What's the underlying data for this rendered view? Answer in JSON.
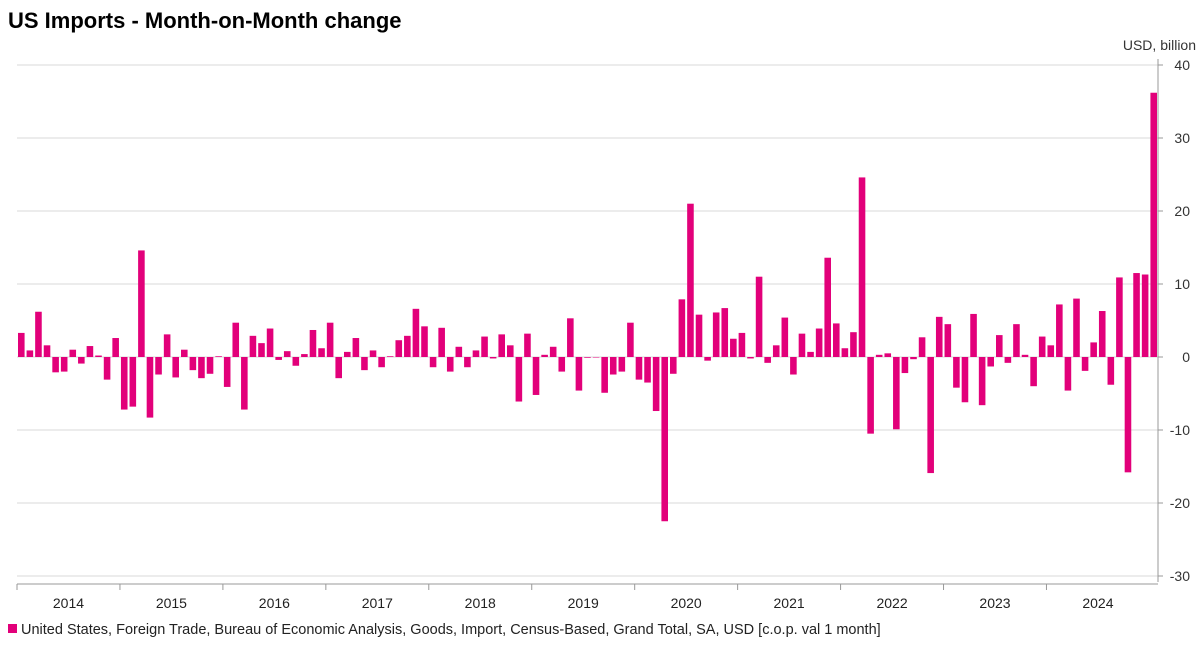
{
  "chart_data": {
    "type": "bar",
    "title": "US Imports - Month-on-Month change",
    "unit_label": "USD, billion",
    "ylim": [
      -30,
      40
    ],
    "yticks": [
      40,
      30,
      20,
      10,
      0,
      -10,
      -20,
      -30
    ],
    "grid": true,
    "legend_position": "bottom-left",
    "color": "#e2007a",
    "x_start": "2014-01",
    "year_labels": [
      "2014",
      "2015",
      "2016",
      "2017",
      "2018",
      "2019",
      "2020",
      "2021",
      "2022",
      "2023",
      "2024"
    ],
    "series": [
      {
        "name": "United States, Foreign Trade, Bureau of Economic Analysis, Goods, Import, Census-Based, Grand Total, SA, USD [c.o.p. val 1 month]",
        "values": [
          3.3,
          0.9,
          6.2,
          1.6,
          -2.1,
          -2.0,
          1.0,
          -0.9,
          1.5,
          0.2,
          -3.1,
          2.6,
          -7.2,
          -6.8,
          14.6,
          -8.3,
          -2.4,
          3.1,
          -2.8,
          1.0,
          -1.8,
          -2.9,
          -2.3,
          0.1,
          -4.1,
          4.7,
          -7.2,
          2.9,
          1.9,
          3.9,
          -0.4,
          0.8,
          -1.2,
          0.4,
          3.7,
          1.2,
          4.7,
          -2.9,
          0.7,
          2.6,
          -1.8,
          0.9,
          -1.4,
          0.1,
          2.3,
          2.9,
          6.6,
          4.2,
          -1.4,
          4.0,
          -2.0,
          1.4,
          -1.4,
          0.9,
          2.8,
          -0.2,
          3.1,
          1.6,
          -6.1,
          3.2,
          -5.2,
          0.3,
          1.4,
          -2.0,
          5.3,
          -4.6,
          -0.1,
          0.0,
          -4.9,
          -2.4,
          -2.0,
          4.7,
          -3.1,
          -3.5,
          -7.4,
          -22.5,
          -2.3,
          7.9,
          21.0,
          5.8,
          -0.5,
          6.1,
          6.7,
          2.5,
          3.3,
          -0.2,
          11.0,
          -0.8,
          1.6,
          5.4,
          -2.4,
          3.2,
          0.7,
          3.9,
          13.6,
          4.6,
          1.2,
          3.4,
          24.6,
          -10.5,
          0.3,
          0.5,
          -9.9,
          -2.2,
          -0.3,
          2.7,
          -15.9,
          5.5,
          4.5,
          -4.2,
          -6.2,
          5.9,
          -6.6,
          -1.3,
          3.0,
          -0.8,
          4.5,
          0.3,
          -4.0,
          2.8,
          1.6,
          7.2,
          -4.6,
          8.0,
          -1.9,
          2.0,
          6.3,
          -3.8,
          10.9,
          -15.8,
          11.5,
          11.3,
          36.2
        ]
      }
    ]
  }
}
